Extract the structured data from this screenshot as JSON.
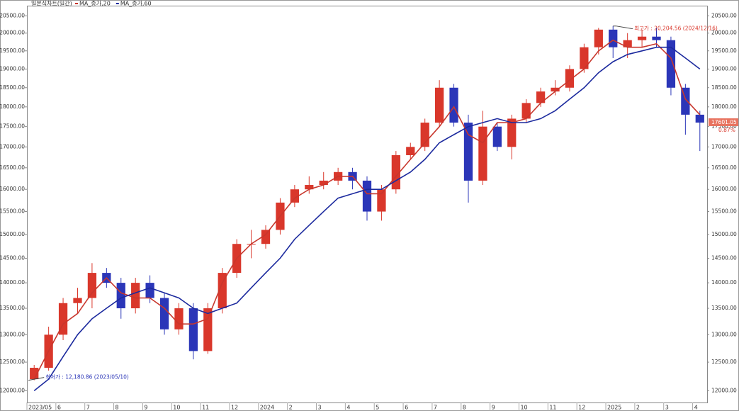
{
  "chart_data": {
    "type": "candlestick",
    "title": "일본식차트(일간)",
    "categories": [
      "2023/05",
      null,
      "6",
      null,
      "7",
      null,
      "8",
      null,
      "9",
      null,
      "10",
      null,
      "11",
      null,
      "12",
      null,
      "2024",
      null,
      "2",
      null,
      "3",
      null,
      "4",
      null,
      "5",
      null,
      "6",
      null,
      "7",
      null,
      "8",
      null,
      "9",
      null,
      "10",
      null,
      "11",
      null,
      "12",
      null,
      "2025",
      null,
      "2",
      null,
      "3",
      null,
      "4"
    ],
    "open": [
      12200,
      12400,
      13000,
      13600,
      13700,
      14200,
      14000,
      13500,
      14000,
      13700,
      13100,
      13500,
      12700,
      13500,
      14200,
      14800,
      14800,
      15100,
      15700,
      16000,
      16100,
      16200,
      16400,
      16200,
      15500,
      16000,
      16800,
      17000,
      17600,
      18500,
      17600,
      16200,
      17500,
      17000,
      17700,
      18100,
      18400,
      18500,
      19000,
      19600,
      20100,
      19600,
      19800,
      19900,
      19800,
      18500,
      17800
    ],
    "high": [
      12450,
      13150,
      13700,
      13900,
      14400,
      14300,
      14100,
      14100,
      14150,
      13800,
      13600,
      13600,
      13600,
      14300,
      14900,
      15100,
      15200,
      15800,
      16100,
      16300,
      16400,
      16500,
      16500,
      16300,
      16100,
      16900,
      17100,
      17700,
      18700,
      18600,
      17800,
      17900,
      17600,
      17800,
      18200,
      18500,
      18700,
      19100,
      19700,
      20150,
      20204.56,
      20000,
      20100,
      20150,
      19900,
      18600,
      17900
    ],
    "low": [
      12180.86,
      12350,
      12900,
      13400,
      13500,
      13900,
      13300,
      13400,
      13600,
      13000,
      13000,
      12550,
      12650,
      13400,
      14100,
      14500,
      14700,
      15000,
      15600,
      15900,
      16000,
      16100,
      16000,
      15300,
      15300,
      15900,
      16700,
      16900,
      17500,
      17500,
      15700,
      16100,
      16900,
      16700,
      17600,
      18000,
      18300,
      18400,
      18900,
      19400,
      19300,
      19300,
      19600,
      19600,
      18300,
      17300,
      16900
    ],
    "close": [
      12400,
      13000,
      13600,
      13700,
      14200,
      14000,
      13500,
      14000,
      13700,
      13100,
      13500,
      12700,
      13500,
      14200,
      14800,
      14800,
      15100,
      15700,
      16000,
      16100,
      16200,
      16400,
      16200,
      15500,
      16000,
      16800,
      17000,
      17600,
      18500,
      17600,
      16200,
      17500,
      17000,
      17700,
      18100,
      18400,
      18500,
      19000,
      19600,
      20100,
      19600,
      19800,
      19900,
      19800,
      18500,
      17800,
      17601.05
    ],
    "up_color": "#d9372b",
    "down_color": "#2b36b8",
    "series": [
      {
        "name": "MA_종가,20",
        "color": "#c8372d",
        "values": [
          12200,
          12700,
          13200,
          13400,
          13800,
          14100,
          13800,
          13700,
          13700,
          13500,
          13200,
          13200,
          13300,
          14000,
          14500,
          14800,
          15000,
          15400,
          15800,
          16000,
          16100,
          16300,
          16300,
          15900,
          15900,
          16300,
          16700,
          17100,
          17500,
          18000,
          17300,
          17100,
          17600,
          17600,
          17700,
          18100,
          18400,
          18700,
          19000,
          19500,
          19800,
          19600,
          19600,
          19700,
          19300,
          18200,
          17800
        ]
      },
      {
        "name": "MA_종가,60",
        "color": "#1c2a9e",
        "values": [
          12000,
          12200,
          12600,
          13000,
          13300,
          13500,
          13700,
          13800,
          13900,
          13800,
          13700,
          13500,
          13400,
          13500,
          13600,
          13900,
          14200,
          14500,
          14900,
          15200,
          15500,
          15800,
          15900,
          16000,
          16000,
          16200,
          16400,
          16700,
          17100,
          17300,
          17500,
          17600,
          17700,
          17600,
          17600,
          17700,
          17900,
          18200,
          18500,
          18900,
          19200,
          19400,
          19500,
          19600,
          19600,
          19300,
          19000
        ]
      }
    ],
    "ylim": [
      11800,
      20800
    ],
    "log_scale": true,
    "grid": false,
    "yticks": [
      {
        "value": 12000,
        "label": "12000.00"
      },
      {
        "value": 12500,
        "label": "12500.00"
      },
      {
        "value": 13000,
        "label": "13000.00"
      },
      {
        "value": 13500,
        "label": "13500.00"
      },
      {
        "value": 14000,
        "label": "14000.00"
      },
      {
        "value": 14500,
        "label": "14500.00"
      },
      {
        "value": 15000,
        "label": "15000.00"
      },
      {
        "value": 15500,
        "label": "15500.00"
      },
      {
        "value": 16000,
        "label": "16000.00"
      },
      {
        "value": 16500,
        "label": "16500.00"
      },
      {
        "value": 17000,
        "label": "17000.00"
      },
      {
        "value": 17500,
        "label": "17500.00"
      },
      {
        "value": 18000,
        "label": "18000.00"
      },
      {
        "value": 18500,
        "label": "18500.00"
      },
      {
        "value": 19000,
        "label": "19000.00"
      },
      {
        "value": 19500,
        "label": "19500.00"
      },
      {
        "value": 20000,
        "label": "20000.00"
      },
      {
        "value": 20500,
        "label": "20500.00"
      }
    ],
    "annotations": {
      "high": "최고가 : 20,204.56 (2024/12/16)",
      "low": "최저가 : 12,180.86 (2023/05/10)"
    },
    "change": {
      "value": 0.87,
      "label": "0.87%"
    }
  }
}
